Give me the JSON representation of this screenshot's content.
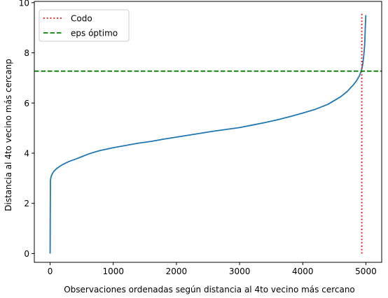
{
  "chart_data": {
    "type": "line",
    "title": "",
    "xlabel": "Observaciones ordenadas según distancia al 4to vecino más cercano",
    "ylabel": "Distancia al 4to vecino más cercanp",
    "xlim": [
      -250,
      5250
    ],
    "ylim": [
      -0.35,
      10.05
    ],
    "xticks": [
      0,
      1000,
      2000,
      3000,
      4000,
      5000
    ],
    "yticks": [
      0,
      2,
      4,
      6,
      8,
      10
    ],
    "grid": false,
    "legend_position": "top-left",
    "series": [
      {
        "style": "line",
        "color": "#1f77b4",
        "x": [
          0,
          2,
          5,
          10,
          20,
          40,
          60,
          100,
          150,
          200,
          300,
          400,
          500,
          600,
          700,
          800,
          1000,
          1200,
          1400,
          1600,
          1800,
          2000,
          2200,
          2400,
          2600,
          2800,
          3000,
          3200,
          3400,
          3600,
          3800,
          4000,
          4200,
          4400,
          4500,
          4600,
          4700,
          4800,
          4850,
          4900,
          4930,
          4950,
          4960,
          4970,
          4980,
          4985,
          4990,
          4995,
          4999
        ],
        "y": [
          0.0,
          1.5,
          2.9,
          3.0,
          3.1,
          3.2,
          3.28,
          3.38,
          3.47,
          3.55,
          3.67,
          3.76,
          3.86,
          3.96,
          4.04,
          4.11,
          4.22,
          4.31,
          4.4,
          4.47,
          4.56,
          4.64,
          4.72,
          4.8,
          4.88,
          4.95,
          5.02,
          5.12,
          5.22,
          5.33,
          5.46,
          5.6,
          5.75,
          5.95,
          6.1,
          6.25,
          6.45,
          6.72,
          6.88,
          7.1,
          7.3,
          7.55,
          7.75,
          8.0,
          8.3,
          8.6,
          9.0,
          9.3,
          9.5
        ]
      },
      {
        "name": "Codo",
        "style": "dotted-vertical",
        "color": "#ff0000",
        "x": [
          4935,
          4935
        ],
        "y": [
          0.0,
          9.55
        ]
      },
      {
        "name": "eps óptimo",
        "style": "dashed-horizontal",
        "color": "#008000",
        "y_value": 7.27
      }
    ]
  }
}
